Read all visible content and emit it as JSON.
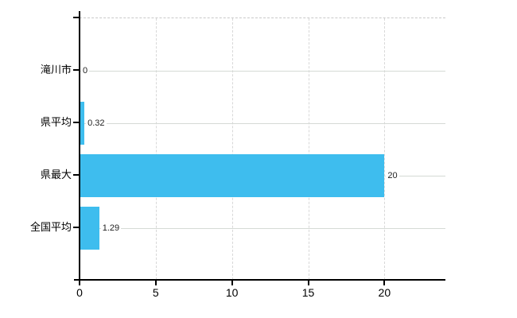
{
  "chart_data": {
    "type": "bar",
    "orientation": "horizontal",
    "title": "",
    "xlabel": "",
    "ylabel": "",
    "categories": [
      "滝川市",
      "県平均",
      "県最大",
      "全国平均"
    ],
    "values": [
      0,
      0.32,
      20,
      1.29
    ],
    "value_labels": [
      "0",
      "0.32",
      "20",
      "1.29"
    ],
    "x_ticks": [
      0,
      5,
      10,
      15,
      20
    ],
    "x_tick_labels": [
      "0",
      "5",
      "10",
      "15",
      "20"
    ],
    "xlim": [
      0,
      24
    ],
    "grid": true,
    "legend": false,
    "bar_color": "#3ebdee"
  },
  "colors": {
    "background": "#ffffff",
    "bar": "#3ebdee",
    "axis": "#000000",
    "vertical_gridline": "#d8d8d8",
    "row_gridline": "#d5dad5",
    "top_border": "#c9c9c9",
    "text": "#000000",
    "value_text": "#1f1f1f"
  }
}
